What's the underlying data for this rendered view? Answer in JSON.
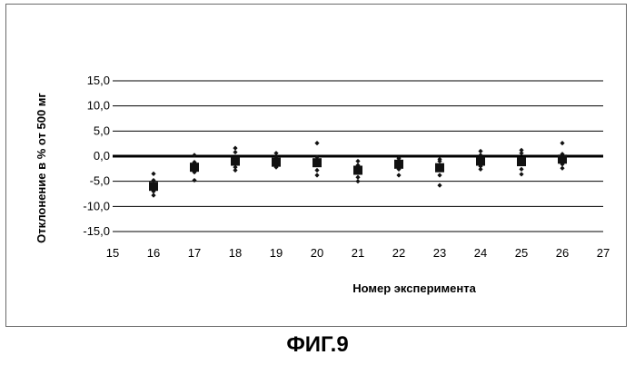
{
  "caption": "ФИГ.9",
  "chart_data": {
    "type": "scatter",
    "title": "",
    "xlabel": "Номер эксперимента",
    "ylabel": "Отклонение в % от 500 мг",
    "xlim": [
      15,
      27
    ],
    "ylim": [
      -15,
      15
    ],
    "x_ticks": [
      "15",
      "16",
      "17",
      "18",
      "19",
      "20",
      "21",
      "22",
      "23",
      "24",
      "25",
      "26",
      "27"
    ],
    "y_ticks": [
      "15,0",
      "10,0",
      "5,0",
      "0,0",
      "-5,0",
      "-10,0",
      "-15,0"
    ],
    "grid": true,
    "legend": "none",
    "series": [
      {
        "marker": "square",
        "points": [
          {
            "x": 16,
            "y": -6.0
          },
          {
            "x": 17,
            "y": -2.2
          },
          {
            "x": 18,
            "y": -1.0
          },
          {
            "x": 19,
            "y": -1.2
          },
          {
            "x": 20,
            "y": -1.3
          },
          {
            "x": 21,
            "y": -2.8
          },
          {
            "x": 22,
            "y": -1.6
          },
          {
            "x": 23,
            "y": -2.3
          },
          {
            "x": 24,
            "y": -1.0
          },
          {
            "x": 25,
            "y": -1.1
          },
          {
            "x": 26,
            "y": -0.6
          }
        ]
      },
      {
        "marker": "diamond",
        "points": [
          {
            "x": 16,
            "y": -3.5
          },
          {
            "x": 16,
            "y": -4.8
          },
          {
            "x": 16,
            "y": -7.0
          },
          {
            "x": 16,
            "y": -7.8
          },
          {
            "x": 17,
            "y": 0.2
          },
          {
            "x": 17,
            "y": -1.2
          },
          {
            "x": 17,
            "y": -3.2
          },
          {
            "x": 17,
            "y": -4.8
          },
          {
            "x": 18,
            "y": 1.6
          },
          {
            "x": 18,
            "y": 0.8
          },
          {
            "x": 18,
            "y": -2.2
          },
          {
            "x": 18,
            "y": -2.8
          },
          {
            "x": 19,
            "y": 0.6
          },
          {
            "x": 19,
            "y": -0.2
          },
          {
            "x": 19,
            "y": -1.8
          },
          {
            "x": 19,
            "y": -2.2
          },
          {
            "x": 20,
            "y": 2.6
          },
          {
            "x": 20,
            "y": -0.2
          },
          {
            "x": 20,
            "y": -2.8
          },
          {
            "x": 20,
            "y": -3.8
          },
          {
            "x": 21,
            "y": -1.0
          },
          {
            "x": 21,
            "y": -1.8
          },
          {
            "x": 21,
            "y": -4.2
          },
          {
            "x": 21,
            "y": -5.0
          },
          {
            "x": 22,
            "y": -0.4
          },
          {
            "x": 22,
            "y": -0.8
          },
          {
            "x": 22,
            "y": -2.6
          },
          {
            "x": 22,
            "y": -3.8
          },
          {
            "x": 23,
            "y": -0.6
          },
          {
            "x": 23,
            "y": -1.0
          },
          {
            "x": 23,
            "y": -3.8
          },
          {
            "x": 23,
            "y": -5.8
          },
          {
            "x": 24,
            "y": 1.0
          },
          {
            "x": 24,
            "y": 0.2
          },
          {
            "x": 24,
            "y": -2.0
          },
          {
            "x": 24,
            "y": -2.6
          },
          {
            "x": 25,
            "y": 1.2
          },
          {
            "x": 25,
            "y": 0.6
          },
          {
            "x": 25,
            "y": -2.6
          },
          {
            "x": 25,
            "y": -3.6
          },
          {
            "x": 26,
            "y": 2.6
          },
          {
            "x": 26,
            "y": 0.4
          },
          {
            "x": 26,
            "y": -1.6
          },
          {
            "x": 26,
            "y": -2.4
          }
        ]
      }
    ]
  }
}
